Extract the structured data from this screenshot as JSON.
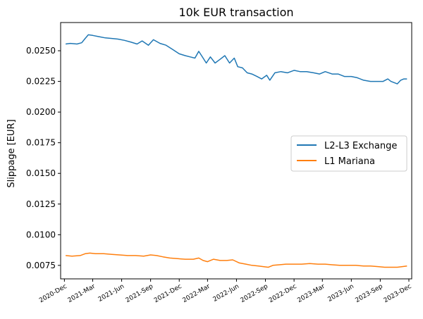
{
  "colors": {
    "series1": "#1f77b4",
    "series2": "#ff7f0e",
    "axis": "#000000"
  },
  "chart_data": {
    "type": "line",
    "title": "10k EUR transaction",
    "xlabel": "",
    "ylabel": "Slippage [EUR]",
    "xlim": [
      "2020-11-19",
      "2023-12-10"
    ],
    "ylim": [
      0.0064,
      0.0273
    ],
    "x_ticks": [
      {
        "date": "2020-12-01",
        "label": "2020-Dec"
      },
      {
        "date": "2021-03-01",
        "label": "2021-Mar"
      },
      {
        "date": "2021-06-01",
        "label": "2021-Jun"
      },
      {
        "date": "2021-09-01",
        "label": "2021-Sep"
      },
      {
        "date": "2021-12-01",
        "label": "2021-Dec"
      },
      {
        "date": "2022-03-01",
        "label": "2022-Mar"
      },
      {
        "date": "2022-06-01",
        "label": "2022-Jun"
      },
      {
        "date": "2022-09-01",
        "label": "2022-Sep"
      },
      {
        "date": "2022-12-01",
        "label": "2022-Dec"
      },
      {
        "date": "2023-03-01",
        "label": "2023-Mar"
      },
      {
        "date": "2023-06-01",
        "label": "2023-Jun"
      },
      {
        "date": "2023-09-01",
        "label": "2023-Sep"
      },
      {
        "date": "2023-12-01",
        "label": "2023-Dec"
      }
    ],
    "y_ticks": [
      {
        "value": 0.0075,
        "label": "0.0075"
      },
      {
        "value": 0.01,
        "label": "0.0100"
      },
      {
        "value": 0.0125,
        "label": "0.0125"
      },
      {
        "value": 0.015,
        "label": "0.0150"
      },
      {
        "value": 0.0175,
        "label": "0.0175"
      },
      {
        "value": 0.02,
        "label": "0.0200"
      },
      {
        "value": 0.0225,
        "label": "0.0225"
      },
      {
        "value": 0.025,
        "label": "0.0250"
      }
    ],
    "legend": "center-right",
    "grid": false,
    "series": [
      {
        "name": "L2-L3 Exchange",
        "color": "#1f77b4",
        "x": [
          "2020-12-05",
          "2020-12-20",
          "2021-01-10",
          "2021-01-25",
          "2021-02-05",
          "2021-02-15",
          "2021-03-01",
          "2021-03-20",
          "2021-04-10",
          "2021-05-01",
          "2021-05-20",
          "2021-06-10",
          "2021-07-01",
          "2021-07-20",
          "2021-08-05",
          "2021-08-25",
          "2021-09-10",
          "2021-10-01",
          "2021-10-20",
          "2021-11-10",
          "2021-12-01",
          "2021-12-20",
          "2022-01-05",
          "2022-01-20",
          "2022-02-01",
          "2022-02-10",
          "2022-02-25",
          "2022-03-10",
          "2022-03-25",
          "2022-04-10",
          "2022-04-25",
          "2022-05-10",
          "2022-05-25",
          "2022-06-05",
          "2022-06-20",
          "2022-07-05",
          "2022-07-20",
          "2022-08-05",
          "2022-08-20",
          "2022-09-05",
          "2022-09-15",
          "2022-10-01",
          "2022-10-20",
          "2022-11-10",
          "2022-12-01",
          "2022-12-20",
          "2023-01-10",
          "2023-02-01",
          "2023-02-20",
          "2023-03-10",
          "2023-04-01",
          "2023-04-20",
          "2023-05-10",
          "2023-06-01",
          "2023-06-20",
          "2023-07-10",
          "2023-08-01",
          "2023-08-20",
          "2023-09-10",
          "2023-09-25",
          "2023-10-05",
          "2023-10-15",
          "2023-10-25",
          "2023-11-05",
          "2023-11-15",
          "2023-11-25"
        ],
        "values": [
          0.02555,
          0.0256,
          0.02555,
          0.02565,
          0.026,
          0.0263,
          0.02625,
          0.02615,
          0.02605,
          0.026,
          0.02595,
          0.02585,
          0.0257,
          0.02555,
          0.0258,
          0.02545,
          0.0259,
          0.0256,
          0.02545,
          0.0251,
          0.02475,
          0.0246,
          0.0245,
          0.0244,
          0.02495,
          0.0246,
          0.024,
          0.0245,
          0.024,
          0.0243,
          0.0246,
          0.024,
          0.0244,
          0.0237,
          0.0236,
          0.0232,
          0.0231,
          0.0229,
          0.0227,
          0.023,
          0.0226,
          0.0232,
          0.0233,
          0.0232,
          0.0234,
          0.0233,
          0.0233,
          0.0232,
          0.0231,
          0.0233,
          0.0231,
          0.0231,
          0.0229,
          0.0229,
          0.0228,
          0.0226,
          0.0225,
          0.0225,
          0.0225,
          0.0227,
          0.0225,
          0.0224,
          0.0223,
          0.0226,
          0.0227,
          0.0227
        ]
      },
      {
        "name": "L1 Mariana",
        "color": "#ff7f0e",
        "x": [
          "2020-12-05",
          "2020-12-25",
          "2021-01-20",
          "2021-02-05",
          "2021-02-20",
          "2021-03-10",
          "2021-04-05",
          "2021-05-01",
          "2021-05-25",
          "2021-06-20",
          "2021-07-15",
          "2021-08-10",
          "2021-09-01",
          "2021-09-20",
          "2021-10-10",
          "2021-11-01",
          "2021-11-25",
          "2021-12-20",
          "2022-01-15",
          "2022-02-01",
          "2022-02-15",
          "2022-03-01",
          "2022-03-20",
          "2022-04-10",
          "2022-05-01",
          "2022-05-20",
          "2022-06-10",
          "2022-07-01",
          "2022-07-20",
          "2022-08-10",
          "2022-08-25",
          "2022-09-10",
          "2022-09-25",
          "2022-10-15",
          "2022-11-05",
          "2022-12-01",
          "2022-12-25",
          "2023-01-20",
          "2023-02-15",
          "2023-03-10",
          "2023-04-01",
          "2023-04-25",
          "2023-05-20",
          "2023-06-15",
          "2023-07-10",
          "2023-08-01",
          "2023-08-25",
          "2023-09-15",
          "2023-10-05",
          "2023-10-25",
          "2023-11-10",
          "2023-11-25"
        ],
        "values": [
          0.0083,
          0.00825,
          0.0083,
          0.00845,
          0.0085,
          0.00845,
          0.00845,
          0.0084,
          0.00835,
          0.0083,
          0.0083,
          0.00825,
          0.00835,
          0.0083,
          0.0082,
          0.0081,
          0.00805,
          0.008,
          0.008,
          0.0081,
          0.0079,
          0.0078,
          0.008,
          0.0079,
          0.0079,
          0.00795,
          0.0077,
          0.0076,
          0.0075,
          0.00745,
          0.0074,
          0.00735,
          0.0075,
          0.00755,
          0.0076,
          0.0076,
          0.0076,
          0.00765,
          0.0076,
          0.0076,
          0.00755,
          0.0075,
          0.0075,
          0.0075,
          0.00745,
          0.00745,
          0.0074,
          0.00735,
          0.00735,
          0.00735,
          0.0074,
          0.00745
        ]
      }
    ]
  }
}
